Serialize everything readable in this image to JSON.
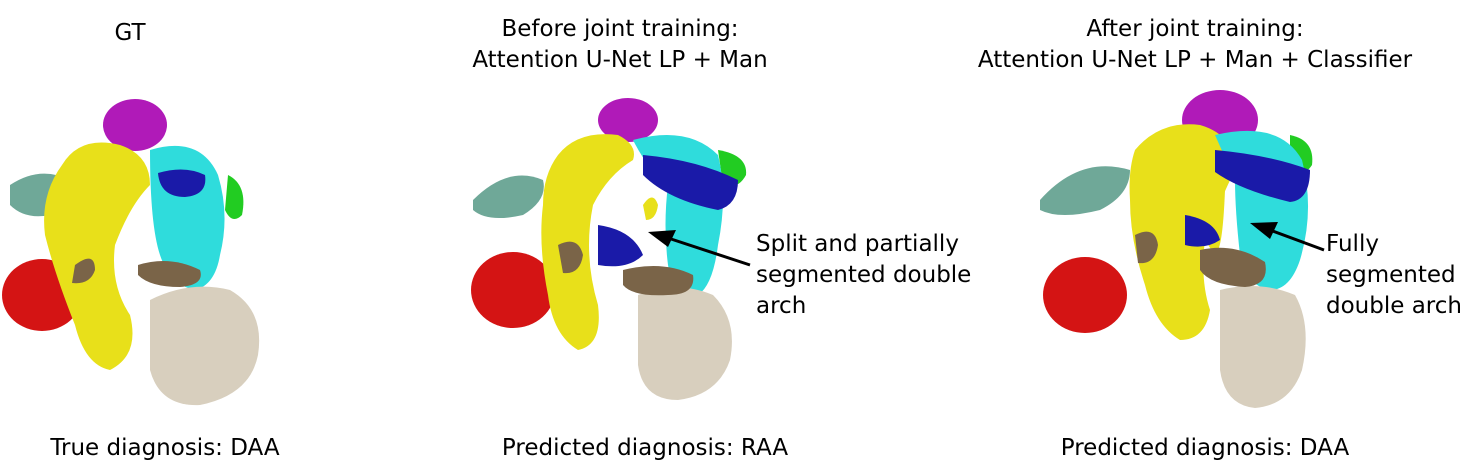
{
  "panels": [
    {
      "title_line1": "GT",
      "title_line2": "",
      "annotation": [],
      "diagnosis": "True diagnosis: DAA"
    },
    {
      "title_line1": "Before joint training:",
      "title_line2": "Attention U-Net LP + Man",
      "annotation": [
        "Split and partially",
        "segmented double",
        "arch"
      ],
      "diagnosis": "Predicted diagnosis: RAA"
    },
    {
      "title_line1": "After joint training:",
      "title_line2": "Attention U-Net LP + Man + Classifier",
      "annotation": [
        "Fully",
        "segmented",
        "double arch"
      ],
      "diagnosis": "Predicted diagnosis: DAA"
    }
  ],
  "colors": {
    "yellow": "#e8e01a",
    "cyan": "#2fdcdc",
    "blue": "#1a1aa8",
    "magenta": "#b01ab8",
    "green": "#22cc22",
    "red": "#d41414",
    "teal": "#6fa898",
    "beige": "#d8cfbe",
    "brown": "#7a6448"
  }
}
